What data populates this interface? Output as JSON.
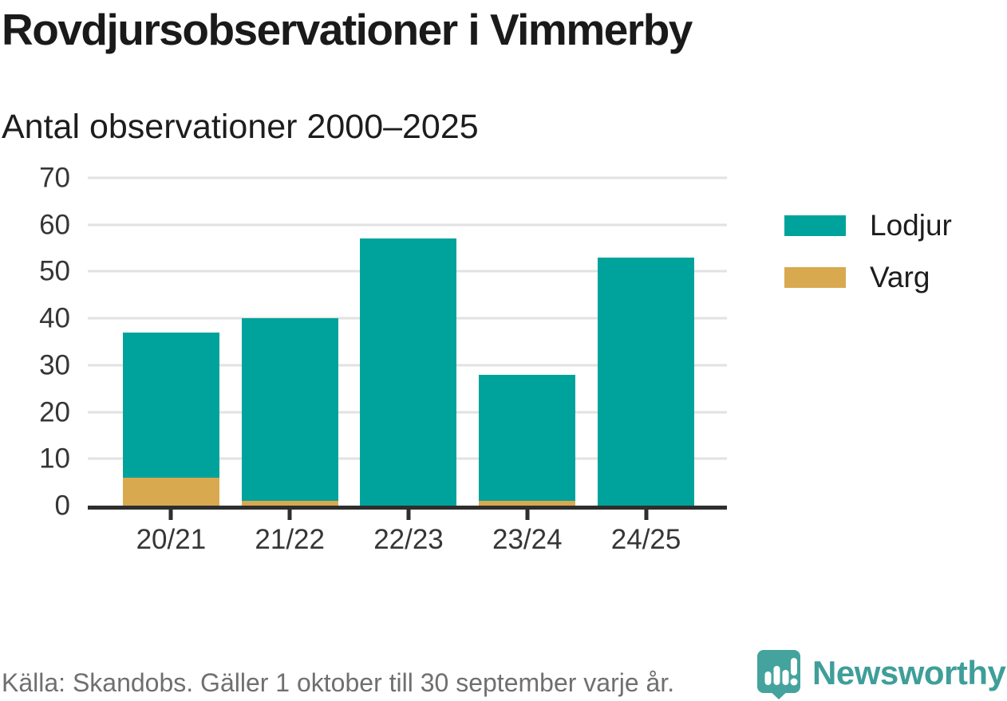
{
  "title": "Rovdjursobservationer i Vimmerby",
  "subtitle": "Antal observationer 2000–2025",
  "footer": {
    "source": "Källa: Skandobs. Gäller 1 oktober till 30 september varje år.",
    "brand": "Newsworthy"
  },
  "colors": {
    "lodjur": "#00a39b",
    "varg": "#d9a950",
    "grid": "#e2e2e2",
    "axis": "#2e2e2e",
    "tick_label": "#363636",
    "title_text": "#1a1a1a",
    "source_text": "#6f6f6f",
    "brand_teal": "#3f9e99",
    "logo_bubble": "#45a39e"
  },
  "chart_data": {
    "type": "bar",
    "stacked": true,
    "title": "Rovdjursobservationer i Vimmerby",
    "subtitle": "Antal observationer 2000–2025",
    "categories": [
      "20/21",
      "21/22",
      "22/23",
      "23/24",
      "24/25"
    ],
    "series": [
      {
        "name": "Lodjur",
        "color": "#00a39b",
        "values": [
          31,
          39,
          57,
          27,
          53
        ]
      },
      {
        "name": "Varg",
        "color": "#d9a950",
        "values": [
          6,
          1,
          0,
          1,
          0
        ]
      }
    ],
    "totals": [
      37,
      40,
      57,
      28,
      53
    ],
    "xlabel": "",
    "ylabel": "Antal observationer",
    "ylim": [
      0,
      70
    ],
    "yticks": [
      0,
      10,
      20,
      30,
      40,
      50,
      60,
      70
    ],
    "grid": true,
    "legend_position": "right",
    "stack_order_bottom_up": [
      "Varg",
      "Lodjur"
    ]
  }
}
